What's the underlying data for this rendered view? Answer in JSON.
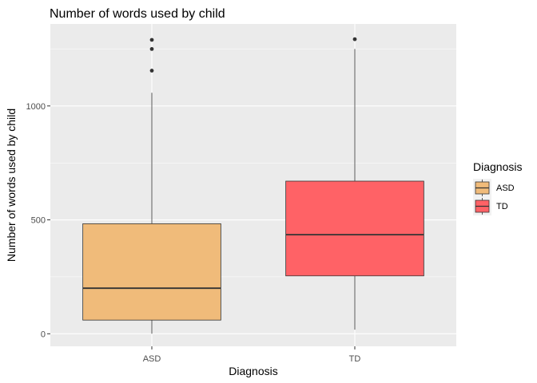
{
  "chart_data": {
    "type": "boxplot",
    "title": "Number of words used by child",
    "xlabel": "Diagnosis",
    "ylabel": "Number of words used by child",
    "categories": [
      "ASD",
      "TD"
    ],
    "yticks": [
      0,
      500,
      1000
    ],
    "ylim": [
      -55,
      1360
    ],
    "grid": true,
    "legend": {
      "title": "Diagnosis",
      "placement": "right",
      "items": [
        {
          "label": "ASD",
          "color": "#F0BB7A"
        },
        {
          "label": "TD",
          "color": "#FF6266"
        }
      ]
    },
    "boxes": [
      {
        "category": "ASD",
        "color": "#F0BB7A",
        "min": 0,
        "q1": 60,
        "median": 200,
        "q3": 483,
        "max": 1058,
        "outliers": [
          1155,
          1250,
          1290
        ]
      },
      {
        "category": "TD",
        "color": "#FF6266",
        "min": 18,
        "q1": 254,
        "median": 435,
        "q3": 670,
        "max": 1250,
        "outliers": [
          1293
        ]
      }
    ]
  }
}
